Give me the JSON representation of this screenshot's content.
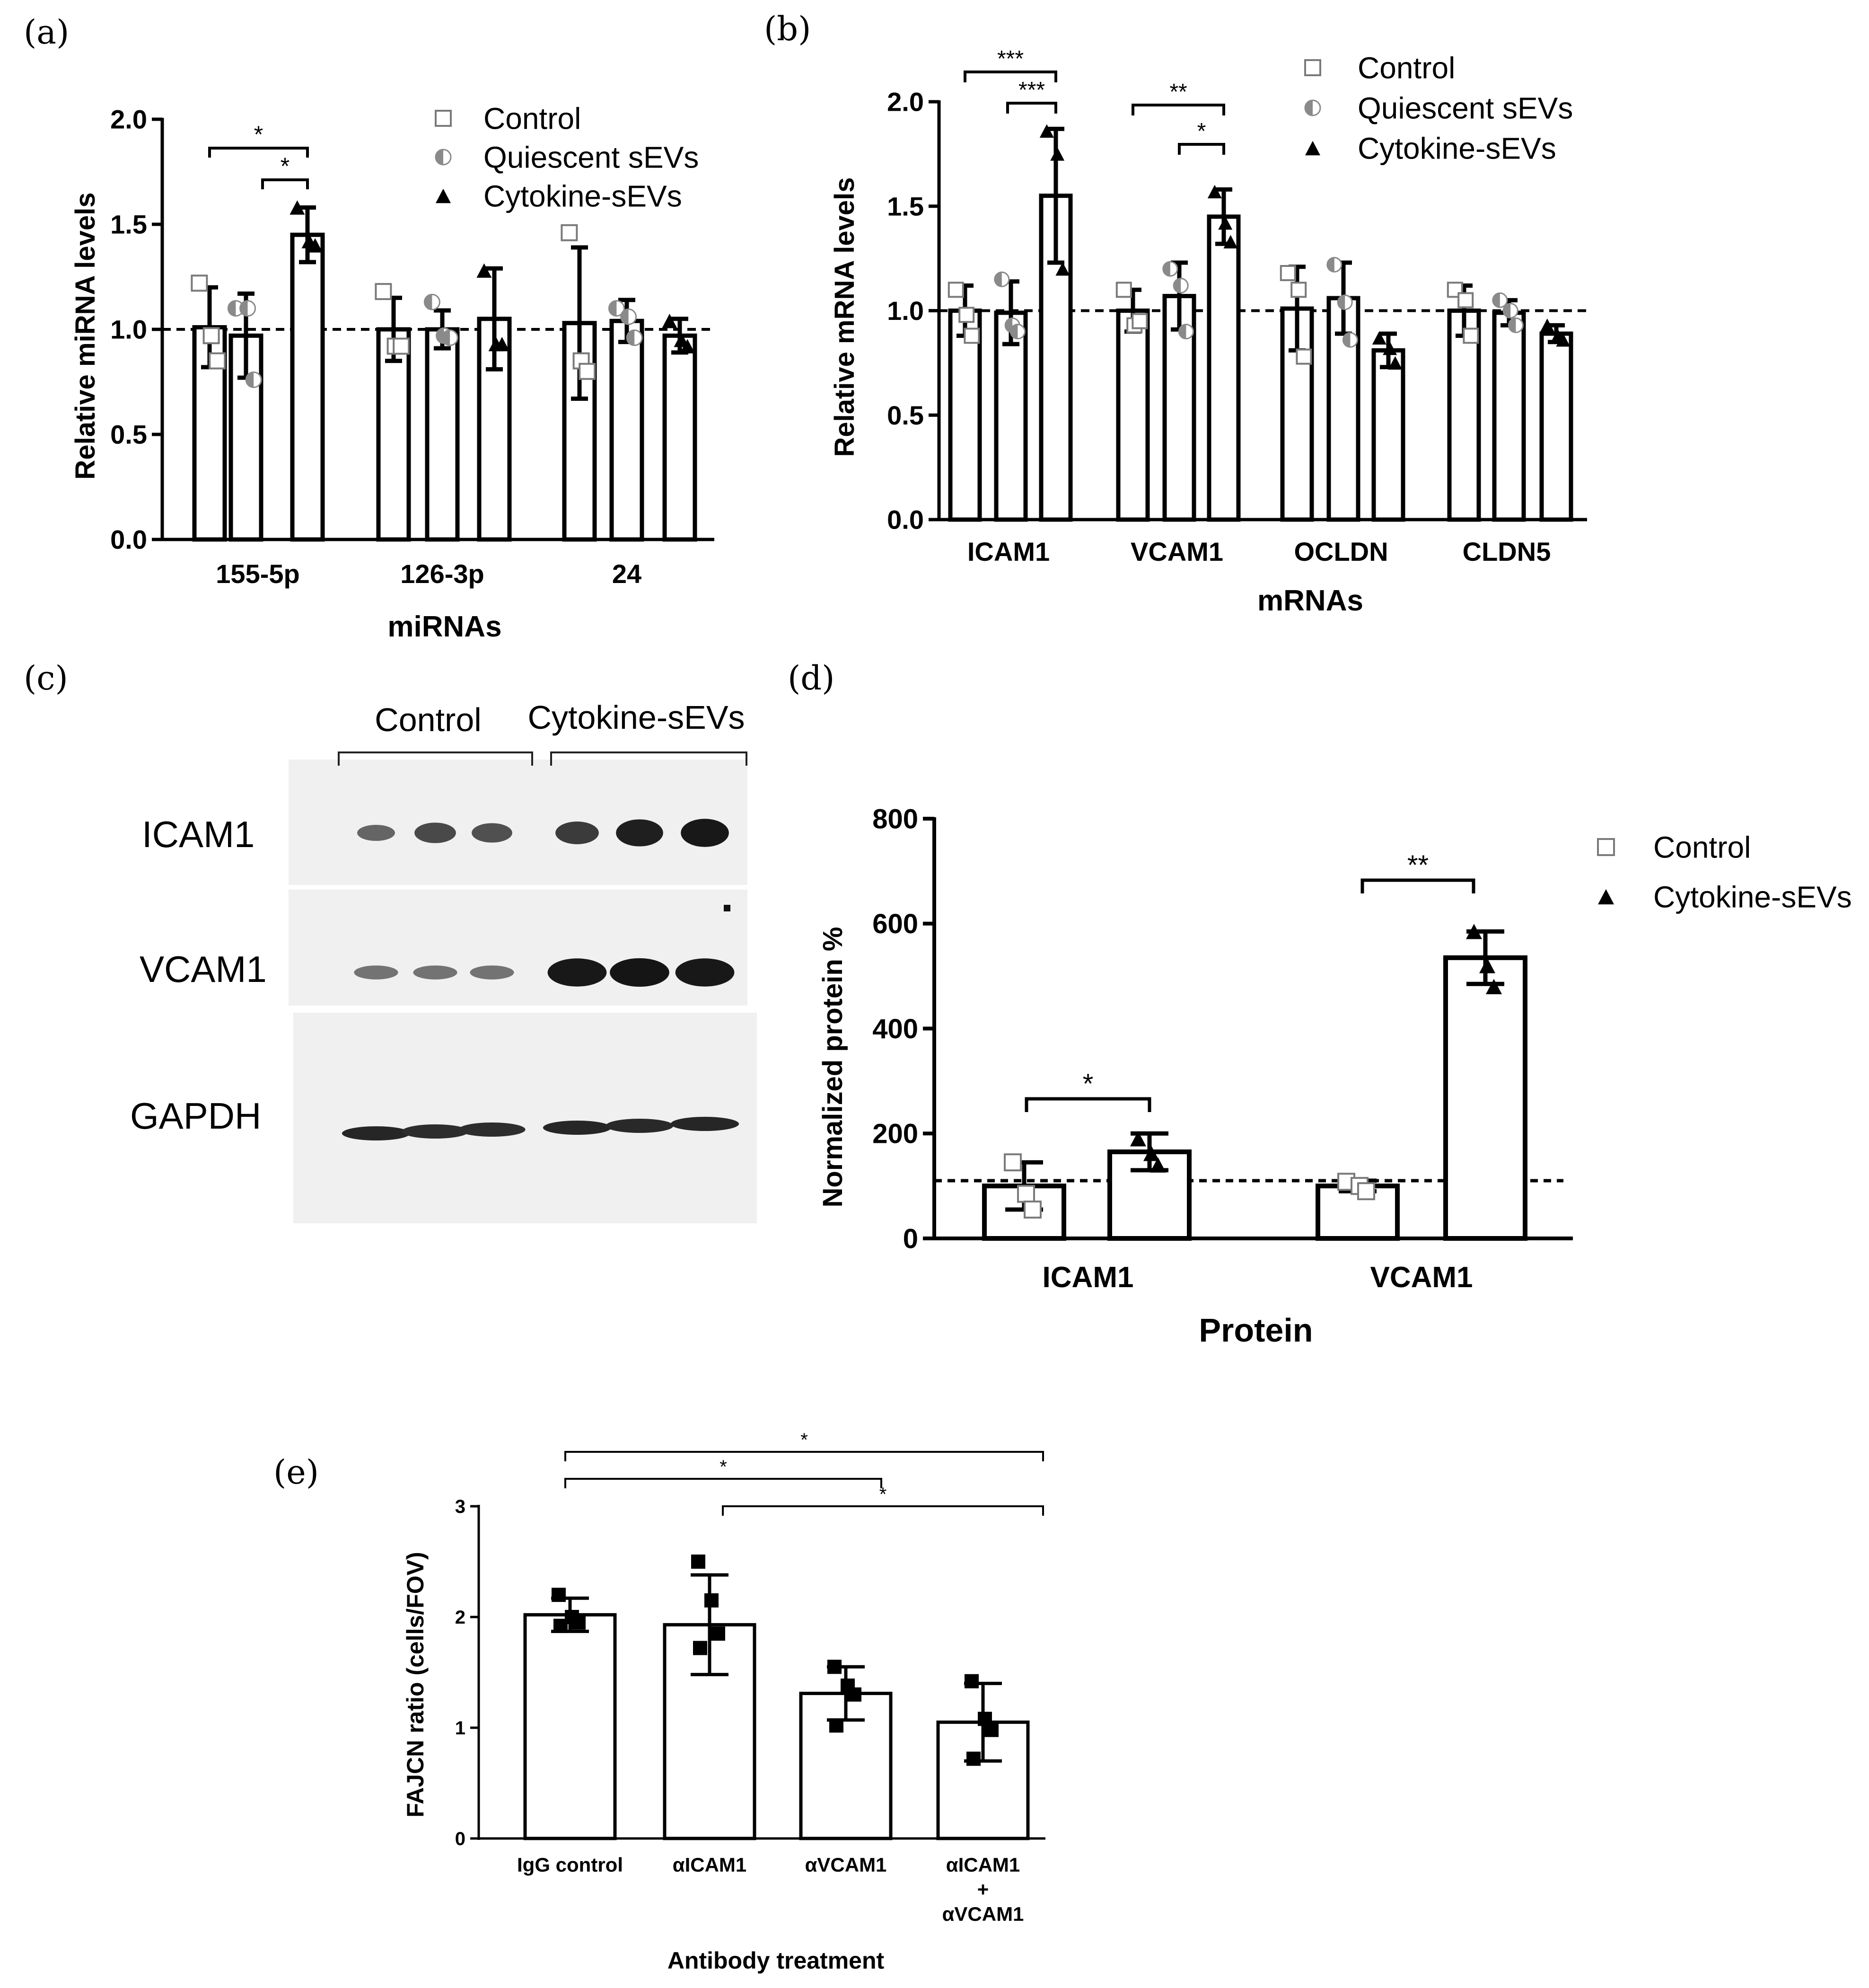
{
  "chart_data": [
    {
      "panel_label": "(a)",
      "type": "bar",
      "title": "",
      "xlabel": "miRNAs",
      "ylabel": "Relative miRNA levels",
      "ylim": [
        0,
        2.0
      ],
      "yticks": [
        0.0,
        0.5,
        1.0,
        1.5,
        2.0
      ],
      "ytick_labels": [
        "0.0",
        "0.5",
        "1.0",
        "1.5",
        "2.0"
      ],
      "reference_line": 1.0,
      "legend_position": "top-right",
      "categories": [
        "155-5p",
        "126-3p",
        "24"
      ],
      "series": [
        {
          "name": "Control",
          "marker": "open-square",
          "values": [
            1.01,
            1.0,
            1.03
          ],
          "error": [
            0.19,
            0.15,
            0.36
          ],
          "points": [
            [
              1.22,
              0.97,
              0.85
            ],
            [
              1.18,
              0.92,
              0.92
            ],
            [
              1.46,
              0.85,
              0.8
            ]
          ]
        },
        {
          "name": "Quiescent sEVs",
          "marker": "half-circle",
          "values": [
            0.97,
            1.0,
            1.04
          ],
          "error": [
            0.2,
            0.09,
            0.1
          ],
          "points": [
            [
              1.1,
              1.1,
              0.76
            ],
            [
              1.13,
              0.97,
              0.96
            ],
            [
              1.1,
              1.06,
              0.96
            ]
          ]
        },
        {
          "name": "Cytokine-sEVs",
          "marker": "filled-triangle",
          "values": [
            1.45,
            1.05,
            0.97
          ],
          "error": [
            0.13,
            0.24,
            0.08
          ],
          "points": [
            [
              1.58,
              1.42,
              1.4
            ],
            [
              1.28,
              0.93,
              0.93
            ],
            [
              1.04,
              0.95,
              0.92
            ]
          ]
        }
      ],
      "significance": [
        {
          "label": "*",
          "from": "155-5p Control",
          "to": "155-5p Cytokine-sEVs"
        },
        {
          "label": "*",
          "from": "155-5p Quiescent sEVs",
          "to": "155-5p Cytokine-sEVs"
        }
      ]
    },
    {
      "panel_label": "(b)",
      "type": "bar",
      "title": "",
      "xlabel": "mRNAs",
      "ylabel": "Relative mRNA levels",
      "ylim": [
        0,
        2.0
      ],
      "yticks": [
        0.0,
        0.5,
        1.0,
        1.5,
        2.0
      ],
      "ytick_labels": [
        "0.0",
        "0.5",
        "1.0",
        "1.5",
        "2.0"
      ],
      "reference_line": 1.0,
      "legend_position": "top-right",
      "categories": [
        "ICAM1",
        "VCAM1",
        "OCLDN",
        "CLDN5"
      ],
      "series": [
        {
          "name": "Control",
          "marker": "open-square",
          "values": [
            1.0,
            1.0,
            1.01,
            1.0
          ],
          "error": [
            0.12,
            0.1,
            0.2,
            0.12
          ],
          "points": [
            [
              1.1,
              0.98,
              0.88
            ],
            [
              1.1,
              0.93,
              0.95
            ],
            [
              1.18,
              1.1,
              0.78
            ],
            [
              1.1,
              1.05,
              0.88
            ]
          ]
        },
        {
          "name": "Quiescent sEVs",
          "marker": "half-circle",
          "values": [
            0.99,
            1.07,
            1.06,
            0.99
          ],
          "error": [
            0.15,
            0.16,
            0.17,
            0.06
          ],
          "points": [
            [
              1.15,
              0.93,
              0.9
            ],
            [
              1.2,
              1.12,
              0.9
            ],
            [
              1.22,
              1.04,
              0.86
            ],
            [
              1.05,
              1.0,
              0.93
            ]
          ]
        },
        {
          "name": "Cytokine-sEVs",
          "marker": "filled-triangle",
          "values": [
            1.55,
            1.45,
            0.81,
            0.89
          ],
          "error": [
            0.32,
            0.13,
            0.08,
            0.04
          ],
          "points": [
            [
              1.86,
              1.75,
              1.2
            ],
            [
              1.57,
              1.42,
              1.33
            ],
            [
              0.87,
              0.82,
              0.75
            ],
            [
              0.93,
              0.88,
              0.86
            ]
          ]
        }
      ],
      "significance": [
        {
          "label": "***",
          "from": "ICAM1 Control",
          "to": "ICAM1 Cytokine-sEVs"
        },
        {
          "label": "***",
          "from": "ICAM1 Quiescent sEVs",
          "to": "ICAM1 Cytokine-sEVs"
        },
        {
          "label": "**",
          "from": "VCAM1 Control",
          "to": "VCAM1 Cytokine-sEVs"
        },
        {
          "label": "*",
          "from": "VCAM1 Quiescent sEVs",
          "to": "VCAM1 Cytokine-sEVs"
        }
      ]
    },
    {
      "panel_label": "(d)",
      "type": "bar",
      "title": "",
      "xlabel": "Protein",
      "ylabel": "Normalized protein %",
      "ylim": [
        0,
        800
      ],
      "yticks": [
        0,
        200,
        400,
        600,
        800
      ],
      "ytick_labels": [
        "0",
        "200",
        "400",
        "600",
        "800"
      ],
      "reference_line": 110,
      "legend_position": "top-right",
      "categories": [
        "ICAM1",
        "VCAM1"
      ],
      "series": [
        {
          "name": "Control",
          "marker": "open-square",
          "values": [
            100,
            100
          ],
          "error": [
            45,
            10
          ],
          "points": [
            [
              145,
              85,
              55
            ],
            [
              108,
              100,
              90
            ]
          ]
        },
        {
          "name": "Cytokine-sEVs",
          "marker": "filled-triangle",
          "values": [
            165,
            535
          ],
          "error": [
            35,
            50
          ],
          "points": [
            [
              190,
              162,
              140
            ],
            [
              585,
              520,
              480
            ]
          ]
        }
      ],
      "significance": [
        {
          "label": "*",
          "from": "ICAM1 Control",
          "to": "ICAM1 Cytokine-sEVs"
        },
        {
          "label": "**",
          "from": "VCAM1 Control",
          "to": "VCAM1 Cytokine-sEVs"
        }
      ]
    },
    {
      "panel_label": "(e)",
      "type": "bar",
      "title": "",
      "xlabel": "Antibody treatment",
      "ylabel": "FAJCN ratio (cells/FOV)",
      "ylim": [
        0,
        3
      ],
      "yticks": [
        0,
        1,
        2,
        3
      ],
      "ytick_labels": [
        "0",
        "1",
        "2",
        "3"
      ],
      "legend_position": "none",
      "categories": [
        "IgG control",
        "αICAM1",
        "αVCAM1",
        "αICAM1 + αVCAM1"
      ],
      "category_lines": [
        [
          "IgG control"
        ],
        [
          "αICAM1"
        ],
        [
          "αVCAM1"
        ],
        [
          "αICAM1",
          "+",
          "αVCAM1"
        ]
      ],
      "series": [
        {
          "name": "FAJCN ratio",
          "marker": "filled-square",
          "values": [
            2.02,
            1.93,
            1.31,
            1.05
          ],
          "error": [
            0.15,
            0.45,
            0.24,
            0.35
          ],
          "points": [
            [
              2.2,
              2.0,
              1.95,
              1.92
            ],
            [
              2.5,
              2.15,
              1.85,
              1.72
            ],
            [
              1.55,
              1.38,
              1.3,
              1.02
            ],
            [
              1.42,
              1.08,
              0.98,
              0.72
            ]
          ]
        }
      ],
      "significance": [
        {
          "label": "*",
          "from": "IgG control",
          "to": "αICAM1 + αVCAM1"
        },
        {
          "label": "*",
          "from": "IgG control",
          "to": "αVCAM1"
        },
        {
          "label": "*",
          "from": "αICAM1",
          "to": "αICAM1 + αVCAM1"
        }
      ]
    }
  ],
  "western_blot": {
    "panel_label": "(c)",
    "groups": [
      "Control",
      "Cytokine-sEVs"
    ],
    "lanes_per_group": 3,
    "rows": [
      {
        "label": "ICAM1",
        "intensities": [
          0.35,
          0.55,
          0.5,
          0.65,
          0.85,
          0.9
        ]
      },
      {
        "label": "VCAM1",
        "intensities": [
          0.25,
          0.25,
          0.25,
          0.9,
          0.92,
          0.9
        ]
      },
      {
        "label": "GAPDH",
        "intensities": [
          0.8,
          0.75,
          0.75,
          0.8,
          0.78,
          0.8
        ]
      }
    ]
  }
}
